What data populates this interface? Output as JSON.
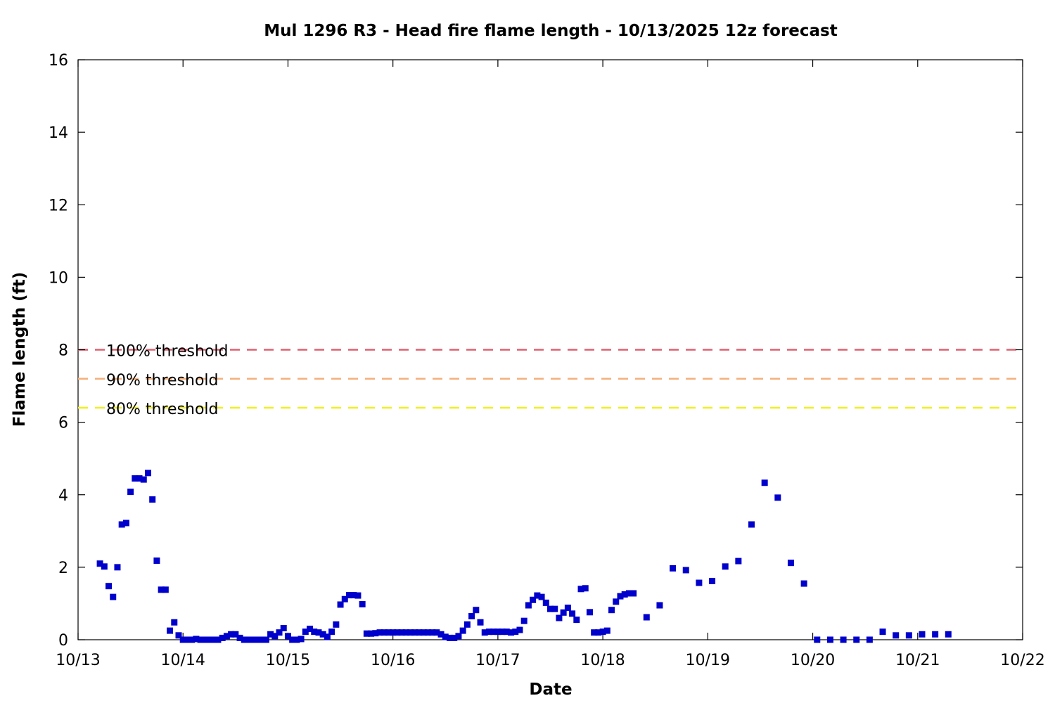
{
  "chart_data": {
    "type": "scatter",
    "title": "Mul 1296 R3 - Head fire flame length - 10/13/2025 12z forecast",
    "xlabel": "Date",
    "ylabel": "Flame length (ft)",
    "xlim": [
      "10/13",
      "10/22"
    ],
    "ylim": [
      0,
      16
    ],
    "x_ticks": [
      "10/13",
      "10/14",
      "10/15",
      "10/16",
      "10/17",
      "10/18",
      "10/19",
      "10/20",
      "10/21",
      "10/22"
    ],
    "y_ticks": [
      0,
      2,
      4,
      6,
      8,
      10,
      12,
      14,
      16
    ],
    "grid": false,
    "marker_color": "#0000cc",
    "thresholds": [
      {
        "label": "100% threshold",
        "value": 8.0,
        "color": "#e06070"
      },
      {
        "label": "90% threshold",
        "value": 7.2,
        "color": "#f4b07c"
      },
      {
        "label": "80% threshold",
        "value": 6.4,
        "color": "#f0f020"
      }
    ],
    "series": [
      {
        "points": [
          [
            "10/13 05:00",
            2.1
          ],
          [
            "10/13 06:00",
            2.02
          ],
          [
            "10/13 07:00",
            1.48
          ],
          [
            "10/13 08:00",
            1.18
          ],
          [
            "10/13 09:00",
            2.0
          ],
          [
            "10/13 10:00",
            3.18
          ],
          [
            "10/13 11:00",
            3.22
          ],
          [
            "10/13 12:00",
            4.08
          ],
          [
            "10/13 13:00",
            4.45
          ],
          [
            "10/13 14:00",
            4.45
          ],
          [
            "10/13 15:00",
            4.42
          ],
          [
            "10/13 16:00",
            4.6
          ],
          [
            "10/13 17:00",
            3.87
          ],
          [
            "10/13 18:00",
            2.18
          ],
          [
            "10/13 19:00",
            1.38
          ],
          [
            "10/13 20:00",
            1.38
          ],
          [
            "10/13 21:00",
            0.25
          ],
          [
            "10/13 22:00",
            0.48
          ],
          [
            "10/13 23:00",
            0.12
          ],
          [
            "10/14 00:00",
            0.0
          ],
          [
            "10/14 01:00",
            0.0
          ],
          [
            "10/14 02:00",
            0.0
          ],
          [
            "10/14 03:00",
            0.02
          ],
          [
            "10/14 04:00",
            0.0
          ],
          [
            "10/14 05:00",
            0.0
          ],
          [
            "10/14 06:00",
            0.0
          ],
          [
            "10/14 07:00",
            0.0
          ],
          [
            "10/14 08:00",
            0.0
          ],
          [
            "10/14 09:00",
            0.05
          ],
          [
            "10/14 10:00",
            0.1
          ],
          [
            "10/14 11:00",
            0.15
          ],
          [
            "10/14 12:00",
            0.15
          ],
          [
            "10/14 13:00",
            0.05
          ],
          [
            "10/14 14:00",
            0.0
          ],
          [
            "10/14 15:00",
            0.0
          ],
          [
            "10/14 16:00",
            0.0
          ],
          [
            "10/14 17:00",
            0.0
          ],
          [
            "10/14 18:00",
            0.0
          ],
          [
            "10/14 19:00",
            0.0
          ],
          [
            "10/14 20:00",
            0.15
          ],
          [
            "10/14 21:00",
            0.1
          ],
          [
            "10/14 22:00",
            0.2
          ],
          [
            "10/14 23:00",
            0.32
          ],
          [
            "10/15 00:00",
            0.1
          ],
          [
            "10/15 01:00",
            0.0
          ],
          [
            "10/15 02:00",
            0.0
          ],
          [
            "10/15 03:00",
            0.02
          ],
          [
            "10/15 04:00",
            0.22
          ],
          [
            "10/15 05:00",
            0.3
          ],
          [
            "10/15 06:00",
            0.22
          ],
          [
            "10/15 07:00",
            0.2
          ],
          [
            "10/15 08:00",
            0.15
          ],
          [
            "10/15 09:00",
            0.08
          ],
          [
            "10/15 10:00",
            0.22
          ],
          [
            "10/15 11:00",
            0.42
          ],
          [
            "10/15 12:00",
            0.97
          ],
          [
            "10/15 13:00",
            1.12
          ],
          [
            "10/15 14:00",
            1.23
          ],
          [
            "10/15 15:00",
            1.23
          ],
          [
            "10/15 16:00",
            1.22
          ],
          [
            "10/15 17:00",
            0.98
          ],
          [
            "10/15 18:00",
            0.17
          ],
          [
            "10/15 19:00",
            0.17
          ],
          [
            "10/15 20:00",
            0.18
          ],
          [
            "10/15 21:00",
            0.2
          ],
          [
            "10/15 22:00",
            0.2
          ],
          [
            "10/15 23:00",
            0.2
          ],
          [
            "10/16 00:00",
            0.2
          ],
          [
            "10/16 01:00",
            0.2
          ],
          [
            "10/16 02:00",
            0.2
          ],
          [
            "10/16 03:00",
            0.2
          ],
          [
            "10/16 04:00",
            0.2
          ],
          [
            "10/16 05:00",
            0.2
          ],
          [
            "10/16 06:00",
            0.2
          ],
          [
            "10/16 07:00",
            0.2
          ],
          [
            "10/16 08:00",
            0.2
          ],
          [
            "10/16 09:00",
            0.2
          ],
          [
            "10/16 10:00",
            0.2
          ],
          [
            "10/16 11:00",
            0.15
          ],
          [
            "10/16 12:00",
            0.08
          ],
          [
            "10/16 13:00",
            0.05
          ],
          [
            "10/16 14:00",
            0.05
          ],
          [
            "10/16 15:00",
            0.1
          ],
          [
            "10/16 16:00",
            0.25
          ],
          [
            "10/16 17:00",
            0.42
          ],
          [
            "10/16 18:00",
            0.65
          ],
          [
            "10/16 19:00",
            0.82
          ],
          [
            "10/16 20:00",
            0.48
          ],
          [
            "10/16 21:00",
            0.2
          ],
          [
            "10/16 22:00",
            0.22
          ],
          [
            "10/16 23:00",
            0.22
          ],
          [
            "10/17 00:00",
            0.22
          ],
          [
            "10/17 01:00",
            0.22
          ],
          [
            "10/17 02:00",
            0.22
          ],
          [
            "10/17 03:00",
            0.2
          ],
          [
            "10/17 04:00",
            0.22
          ],
          [
            "10/17 05:00",
            0.27
          ],
          [
            "10/17 06:00",
            0.52
          ],
          [
            "10/17 07:00",
            0.95
          ],
          [
            "10/17 08:00",
            1.1
          ],
          [
            "10/17 09:00",
            1.22
          ],
          [
            "10/17 10:00",
            1.18
          ],
          [
            "10/17 11:00",
            1.02
          ],
          [
            "10/17 12:00",
            0.85
          ],
          [
            "10/17 13:00",
            0.85
          ],
          [
            "10/17 14:00",
            0.6
          ],
          [
            "10/17 15:00",
            0.75
          ],
          [
            "10/17 16:00",
            0.88
          ],
          [
            "10/17 17:00",
            0.72
          ],
          [
            "10/17 18:00",
            0.55
          ],
          [
            "10/17 19:00",
            1.4
          ],
          [
            "10/17 20:00",
            1.42
          ],
          [
            "10/17 21:00",
            0.76
          ],
          [
            "10/17 22:00",
            0.2
          ],
          [
            "10/17 23:00",
            0.2
          ],
          [
            "10/18 00:00",
            0.22
          ],
          [
            "10/18 01:00",
            0.25
          ],
          [
            "10/18 02:00",
            0.82
          ],
          [
            "10/18 03:00",
            1.05
          ],
          [
            "10/18 04:00",
            1.2
          ],
          [
            "10/18 05:00",
            1.25
          ],
          [
            "10/18 06:00",
            1.28
          ],
          [
            "10/18 07:00",
            1.28
          ],
          [
            "10/18 10:00",
            0.62
          ],
          [
            "10/18 13:00",
            0.95
          ],
          [
            "10/18 16:00",
            1.97
          ],
          [
            "10/18 19:00",
            1.92
          ],
          [
            "10/18 22:00",
            1.57
          ],
          [
            "10/19 01:00",
            1.62
          ],
          [
            "10/19 04:00",
            2.02
          ],
          [
            "10/19 07:00",
            2.17
          ],
          [
            "10/19 10:00",
            3.18
          ],
          [
            "10/19 13:00",
            4.33
          ],
          [
            "10/19 16:00",
            3.92
          ],
          [
            "10/19 19:00",
            2.12
          ],
          [
            "10/19 22:00",
            1.55
          ],
          [
            "10/20 01:00",
            0.0
          ],
          [
            "10/20 04:00",
            0.0
          ],
          [
            "10/20 07:00",
            0.0
          ],
          [
            "10/20 10:00",
            0.0
          ],
          [
            "10/20 13:00",
            0.0
          ],
          [
            "10/20 16:00",
            0.22
          ],
          [
            "10/20 19:00",
            0.12
          ],
          [
            "10/20 22:00",
            0.12
          ],
          [
            "10/21 01:00",
            0.15
          ],
          [
            "10/21 04:00",
            0.15
          ],
          [
            "10/21 07:00",
            0.15
          ]
        ]
      }
    ]
  }
}
